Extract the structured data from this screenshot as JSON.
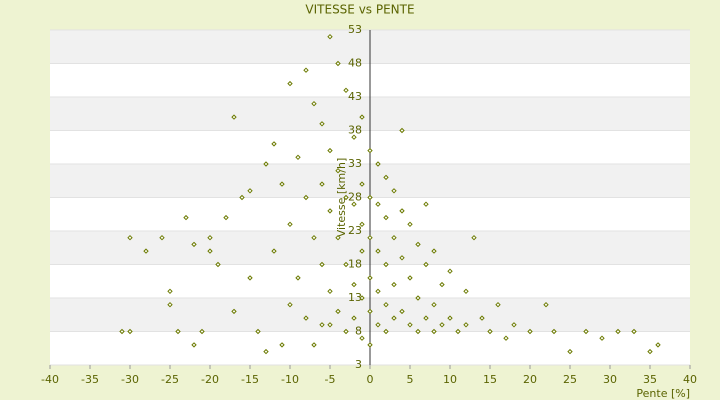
{
  "chart_data": {
    "type": "scatter",
    "title": "VITESSE vs PENTE",
    "x_label": "Pente [%]",
    "y_label": "Vitesse [km/h]",
    "color": "#6b7a00",
    "x": [
      -31,
      -30,
      -30,
      -28,
      -26,
      -25,
      -25,
      -24,
      -23,
      -22,
      -22,
      -21,
      -20,
      -20,
      -19,
      -18,
      -17,
      -17,
      -16,
      -15,
      -15,
      -14,
      -13,
      -13,
      -12,
      -12,
      -11,
      -11,
      -10,
      -10,
      -10,
      -9,
      -9,
      -8,
      -8,
      -8,
      -7,
      -7,
      -7,
      -6,
      -6,
      -6,
      -6,
      -5,
      -5,
      -5,
      -5,
      -5,
      -4,
      -4,
      -4,
      -4,
      -3,
      -3,
      -3,
      -3,
      -2,
      -2,
      -2,
      -2,
      -1,
      -1,
      -1,
      -1,
      -1,
      -1,
      0,
      0,
      0,
      0,
      0,
      0,
      1,
      1,
      1,
      1,
      1,
      2,
      2,
      2,
      2,
      2,
      3,
      3,
      3,
      3,
      4,
      4,
      4,
      4,
      5,
      5,
      5,
      6,
      6,
      6,
      7,
      7,
      7,
      8,
      8,
      8,
      9,
      9,
      10,
      10,
      11,
      12,
      12,
      13,
      14,
      15,
      16,
      17,
      18,
      20,
      22,
      23,
      25,
      27,
      29,
      31,
      33,
      35,
      36
    ],
    "y": [
      8,
      22,
      8,
      20,
      22,
      12,
      14,
      8,
      25,
      21,
      6,
      8,
      22,
      20,
      18,
      25,
      40,
      11,
      28,
      29,
      16,
      8,
      33,
      5,
      36,
      20,
      30,
      6,
      45,
      24,
      12,
      34,
      16,
      47,
      28,
      10,
      42,
      22,
      6,
      39,
      30,
      18,
      9,
      52,
      35,
      26,
      14,
      9,
      48,
      32,
      22,
      11,
      44,
      28,
      18,
      8,
      37,
      27,
      15,
      10,
      40,
      30,
      24,
      20,
      13,
      7,
      35,
      28,
      22,
      16,
      11,
      6,
      33,
      27,
      20,
      14,
      9,
      31,
      25,
      18,
      12,
      8,
      29,
      22,
      15,
      10,
      38,
      26,
      19,
      11,
      24,
      16,
      9,
      21,
      13,
      8,
      27,
      18,
      10,
      20,
      12,
      8,
      15,
      9,
      17,
      10,
      8,
      14,
      9,
      22,
      10,
      8,
      12,
      7,
      9,
      8,
      12,
      8,
      5,
      8,
      7,
      8,
      8,
      5,
      6
    ],
    "xlim": [
      -40,
      40
    ],
    "xticks": [
      -40,
      -35,
      -30,
      -25,
      -20,
      -15,
      -10,
      -5,
      0,
      5,
      10,
      15,
      20,
      25,
      30,
      35,
      40
    ],
    "ylim": [
      3,
      53
    ],
    "yticks": [
      3,
      8,
      13,
      18,
      23,
      28,
      33,
      38,
      43,
      48,
      53
    ],
    "grid": true
  }
}
